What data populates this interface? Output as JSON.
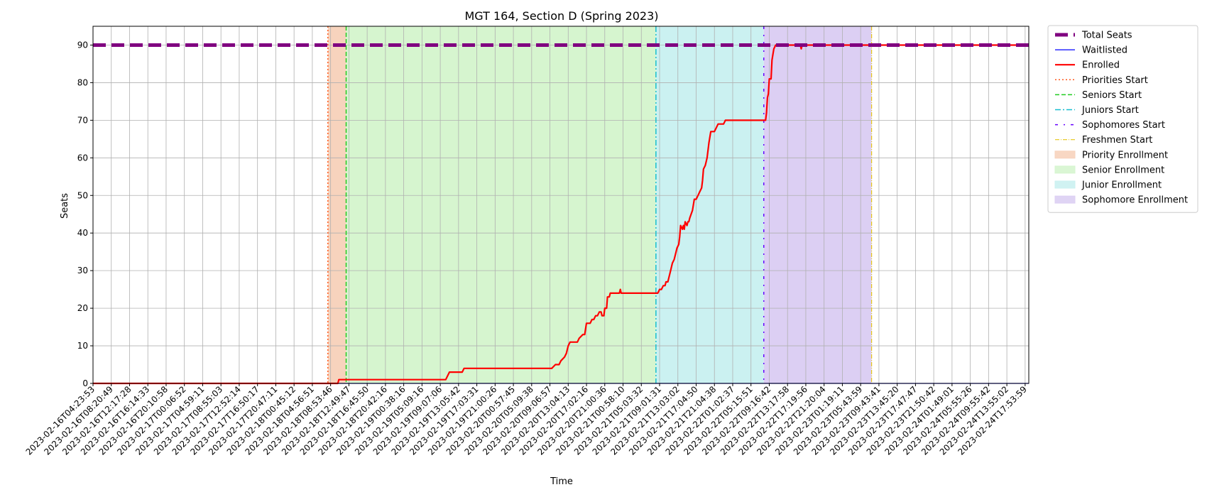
{
  "chart_data": {
    "type": "line",
    "title": "MGT 164, Section D (Spring 2023)",
    "xlabel": "Time",
    "ylabel": "Seats",
    "ylim": [
      0,
      95
    ],
    "yticks": [
      0,
      10,
      20,
      30,
      40,
      50,
      60,
      70,
      80,
      90
    ],
    "grid": true,
    "legend_placement": "outside-right",
    "x_tick_labels": [
      "2023-02-16T04:23:53",
      "2023-02-16T08:20:49",
      "2023-02-16T12:17:28",
      "2023-02-16T16:14:33",
      "2023-02-16T20:10:58",
      "2023-02-17T00:06:52",
      "2023-02-17T04:59:11",
      "2023-02-17T08:55:03",
      "2023-02-17T12:52:14",
      "2023-02-17T16:50:17",
      "2023-02-17T20:47:11",
      "2023-02-18T00:45:12",
      "2023-02-18T04:56:51",
      "2023-02-18T08:53:46",
      "2023-02-18T12:49:47",
      "2023-02-18T16:45:50",
      "2023-02-18T20:42:16",
      "2023-02-19T00:38:16",
      "2023-02-19T05:09:16",
      "2023-02-19T09:07:06",
      "2023-02-19T13:05:42",
      "2023-02-19T17:03:31",
      "2023-02-19T21:00:26",
      "2023-02-20T00:57:45",
      "2023-02-20T05:09:38",
      "2023-02-20T09:06:57",
      "2023-02-20T13:04:13",
      "2023-02-20T17:02:16",
      "2023-02-20T21:00:36",
      "2023-02-21T00:58:10",
      "2023-02-21T05:03:32",
      "2023-02-21T09:01:31",
      "2023-02-21T13:03:02",
      "2023-02-21T17:04:50",
      "2023-02-21T21:04:38",
      "2023-02-22T01:02:37",
      "2023-02-22T05:15:51",
      "2023-02-22T09:16:42",
      "2023-02-22T13:17:58",
      "2023-02-22T17:19:56",
      "2023-02-22T21:20:04",
      "2023-02-23T01:19:11",
      "2023-02-23T05:43:59",
      "2023-02-23T09:43:41",
      "2023-02-23T13:45:20",
      "2023-02-23T17:47:47",
      "2023-02-23T21:50:42",
      "2023-02-24T01:49:01",
      "2023-02-24T05:55:26",
      "2023-02-24T09:55:42",
      "2023-02-24T13:55:02",
      "2023-02-24T17:53:59"
    ],
    "x_range_index": [
      0,
      51.2
    ],
    "series": [
      {
        "name": "Total Seats",
        "color": "#800080",
        "style": "dashed-thick",
        "points": [
          [
            0,
            90
          ],
          [
            51.2,
            90
          ]
        ]
      },
      {
        "name": "Waitlisted",
        "color": "#0000ff",
        "style": "solid-thin",
        "points": [
          [
            0,
            0
          ],
          [
            51.2,
            0
          ]
        ]
      },
      {
        "name": "Enrolled",
        "color": "#ff0000",
        "style": "solid",
        "points": [
          [
            0,
            0
          ],
          [
            13.4,
            0
          ],
          [
            13.45,
            1
          ],
          [
            19.3,
            1
          ],
          [
            19.4,
            2
          ],
          [
            19.5,
            3
          ],
          [
            20.2,
            3
          ],
          [
            20.3,
            4
          ],
          [
            25.1,
            4
          ],
          [
            25.3,
            5
          ],
          [
            25.5,
            5
          ],
          [
            25.6,
            6
          ],
          [
            25.8,
            7
          ],
          [
            25.9,
            8
          ],
          [
            26.0,
            10
          ],
          [
            26.1,
            11
          ],
          [
            26.5,
            11
          ],
          [
            26.6,
            12
          ],
          [
            26.8,
            13
          ],
          [
            26.9,
            13
          ],
          [
            27.0,
            16
          ],
          [
            27.2,
            16
          ],
          [
            27.3,
            17
          ],
          [
            27.4,
            17
          ],
          [
            27.5,
            18
          ],
          [
            27.6,
            18
          ],
          [
            27.7,
            19
          ],
          [
            27.8,
            19
          ],
          [
            27.85,
            18
          ],
          [
            27.95,
            18
          ],
          [
            28.0,
            20
          ],
          [
            28.1,
            20
          ],
          [
            28.15,
            23
          ],
          [
            28.25,
            23
          ],
          [
            28.3,
            24
          ],
          [
            28.8,
            24
          ],
          [
            28.85,
            25
          ],
          [
            28.9,
            24
          ],
          [
            30.9,
            24
          ],
          [
            31.0,
            25
          ],
          [
            31.1,
            25
          ],
          [
            31.2,
            26
          ],
          [
            31.3,
            26
          ],
          [
            31.35,
            27
          ],
          [
            31.45,
            27
          ],
          [
            31.55,
            29
          ],
          [
            31.6,
            30
          ],
          [
            31.7,
            32
          ],
          [
            31.8,
            33
          ],
          [
            31.9,
            35
          ],
          [
            31.95,
            36
          ],
          [
            32.05,
            37
          ],
          [
            32.1,
            39
          ],
          [
            32.15,
            42
          ],
          [
            32.25,
            41
          ],
          [
            32.3,
            42
          ],
          [
            32.35,
            41
          ],
          [
            32.4,
            43
          ],
          [
            32.5,
            42
          ],
          [
            32.55,
            43
          ],
          [
            32.6,
            43
          ],
          [
            32.65,
            44
          ],
          [
            32.8,
            46
          ],
          [
            32.9,
            49
          ],
          [
            33.0,
            49
          ],
          [
            33.1,
            50
          ],
          [
            33.2,
            51
          ],
          [
            33.3,
            52
          ],
          [
            33.35,
            54
          ],
          [
            33.4,
            57
          ],
          [
            33.5,
            58
          ],
          [
            33.6,
            60
          ],
          [
            33.7,
            64
          ],
          [
            33.8,
            67
          ],
          [
            34.0,
            67
          ],
          [
            34.1,
            68
          ],
          [
            34.2,
            69
          ],
          [
            34.5,
            69
          ],
          [
            34.6,
            70
          ],
          [
            36.8,
            70
          ],
          [
            36.85,
            72
          ],
          [
            36.9,
            76
          ],
          [
            36.95,
            77
          ],
          [
            37.0,
            81
          ],
          [
            37.1,
            81
          ],
          [
            37.15,
            86
          ],
          [
            37.25,
            89
          ],
          [
            37.35,
            90
          ],
          [
            37.6,
            90
          ],
          [
            37.7,
            90
          ],
          [
            38.7,
            90
          ],
          [
            38.75,
            89
          ],
          [
            38.8,
            90
          ],
          [
            51.2,
            90
          ]
        ]
      }
    ],
    "phase_lines": [
      {
        "name": "Priorities Start",
        "x": 12.85,
        "color": "#ff5a1f",
        "style": "dotted"
      },
      {
        "name": "Seniors Start",
        "x": 13.85,
        "color": "#22cc22",
        "style": "dashed"
      },
      {
        "name": "Juniors Start",
        "x": 30.8,
        "color": "#17becf",
        "style": "dashdot"
      },
      {
        "name": "Sophomores Start",
        "x": 36.7,
        "color": "#6600ff",
        "style": "loose-dashdot"
      },
      {
        "name": "Freshmen Start",
        "x": 42.6,
        "color": "#e6c619",
        "style": "dashdot-thin"
      }
    ],
    "phase_regions": [
      {
        "name": "Priority Enrollment",
        "x0": 12.85,
        "x1": 13.85,
        "color": "#f7d3bd"
      },
      {
        "name": "Senior Enrollment",
        "x0": 13.85,
        "x1": 30.8,
        "color": "#d6f5cf"
      },
      {
        "name": "Junior Enrollment",
        "x0": 30.8,
        "x1": 36.7,
        "color": "#cbf1f1"
      },
      {
        "name": "Sophomore Enrollment",
        "x0": 36.7,
        "x1": 42.6,
        "color": "#dccff3"
      }
    ],
    "legend": [
      {
        "label": "Total Seats",
        "kind": "line",
        "color": "#800080",
        "style": "dashed-thick"
      },
      {
        "label": "Waitlisted",
        "kind": "line",
        "color": "#0000ff",
        "style": "solid-thin"
      },
      {
        "label": "Enrolled",
        "kind": "line",
        "color": "#ff0000",
        "style": "solid"
      },
      {
        "label": "Priorities Start",
        "kind": "line",
        "color": "#ff5a1f",
        "style": "dotted"
      },
      {
        "label": "Seniors Start",
        "kind": "line",
        "color": "#22cc22",
        "style": "dashed"
      },
      {
        "label": "Juniors Start",
        "kind": "line",
        "color": "#17becf",
        "style": "dashdot"
      },
      {
        "label": "Sophomores Start",
        "kind": "line",
        "color": "#6600ff",
        "style": "loose-dashdot"
      },
      {
        "label": "Freshmen Start",
        "kind": "line",
        "color": "#e6c619",
        "style": "dashdot-thin"
      },
      {
        "label": "Priority Enrollment",
        "kind": "patch",
        "color": "#f7d3bd"
      },
      {
        "label": "Senior Enrollment",
        "kind": "patch",
        "color": "#d6f5cf"
      },
      {
        "label": "Junior Enrollment",
        "kind": "patch",
        "color": "#cbf1f1"
      },
      {
        "label": "Sophomore Enrollment",
        "kind": "patch",
        "color": "#dccff3"
      }
    ]
  }
}
